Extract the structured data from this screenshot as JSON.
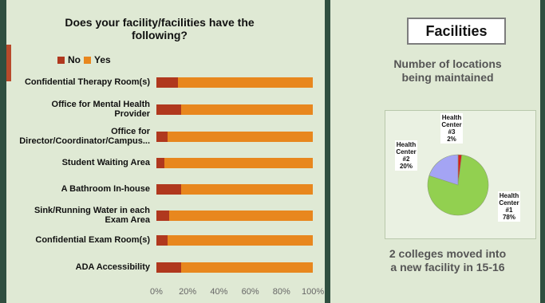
{
  "colors": {
    "no": "#b0381e",
    "yes": "#e8871e",
    "pie_center1": "#92d050",
    "pie_center2": "#a4a4f4",
    "pie_center3": "#d42020"
  },
  "chart_title_line1": "Does your facility/facilities have the",
  "chart_title_line2": "following?",
  "legend": {
    "no": "No",
    "yes": "Yes"
  },
  "right": {
    "heading": "Facilities",
    "subtitle": "Number of locations being maintained",
    "footer": "2 colleges moved into a new facility in 15-16"
  },
  "pie_labels": {
    "c3": [
      "Health",
      "Center",
      "#3",
      "2%"
    ],
    "c2": [
      "Health",
      "Center",
      "#2",
      "20%"
    ],
    "c1": [
      "Health",
      "Center",
      "#1",
      "78%"
    ]
  },
  "chart_data": [
    {
      "type": "bar",
      "title": "Does your facility/facilities have the following?",
      "orientation": "horizontal-stacked-100",
      "categories": [
        "Confidential Therapy Room(s)",
        "Office for Mental Health Provider",
        "Office for Director/Coordinator/Campus...",
        "Student Waiting Area",
        "A Bathroom In-house",
        "Sink/Running Water in each Exam Area",
        "Confidential Exam Room(s)",
        "ADA Accessibility"
      ],
      "category_lines": [
        [
          "Confidential Therapy Room(s)"
        ],
        [
          "Office for Mental Health",
          "Provider"
        ],
        [
          "Office for",
          "Director/Coordinator/Campus..."
        ],
        [
          "Student Waiting Area"
        ],
        [
          "A Bathroom In-house"
        ],
        [
          "Sink/Running Water in each",
          "Exam Area"
        ],
        [
          "Confidential Exam Room(s)"
        ],
        [
          "ADA Accessibility"
        ]
      ],
      "series": [
        {
          "name": "No",
          "values": [
            14,
            16,
            7,
            5,
            16,
            8,
            7,
            16
          ]
        },
        {
          "name": "Yes",
          "values": [
            86,
            84,
            93,
            95,
            84,
            92,
            93,
            84
          ]
        }
      ],
      "xlim": [
        0,
        100
      ],
      "xticks": [
        "0%",
        "20%",
        "40%",
        "60%",
        "80%",
        "100%"
      ],
      "legend": "top-left"
    },
    {
      "type": "pie",
      "categories": [
        "Health Center #1",
        "Health Center #2",
        "Health Center #3"
      ],
      "values": [
        78,
        20,
        2
      ]
    }
  ]
}
